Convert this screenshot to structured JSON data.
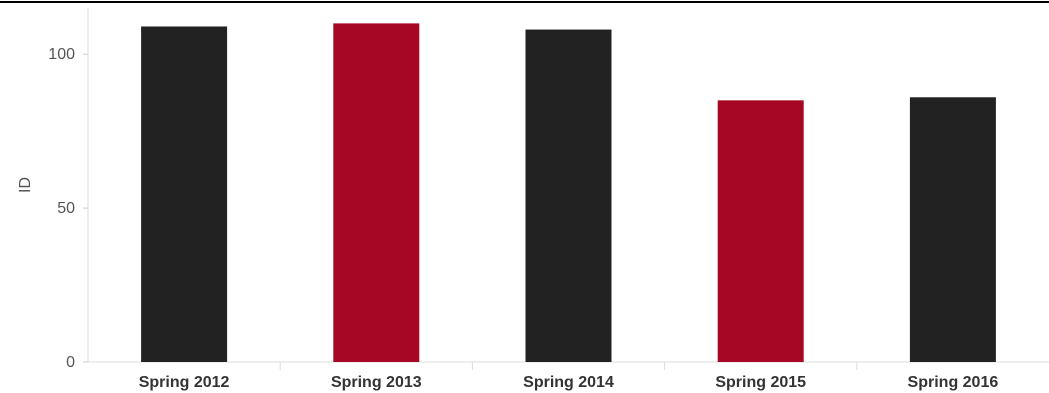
{
  "chart_data": {
    "type": "bar",
    "title": "",
    "xlabel": "",
    "ylabel": "ID",
    "categories": [
      "Spring 2012",
      "Spring 2013",
      "Spring 2014",
      "Spring 2015",
      "Spring 2016"
    ],
    "values": [
      109,
      110,
      108,
      85,
      86
    ],
    "ylim": [
      0,
      115
    ],
    "yticks": [
      0,
      50,
      100
    ],
    "ytick_labels": [
      "0",
      "50",
      "100"
    ],
    "bar_colors": [
      "#222222",
      "#a50724",
      "#222222",
      "#a50724",
      "#222222"
    ],
    "grid": false,
    "legend": "none"
  }
}
